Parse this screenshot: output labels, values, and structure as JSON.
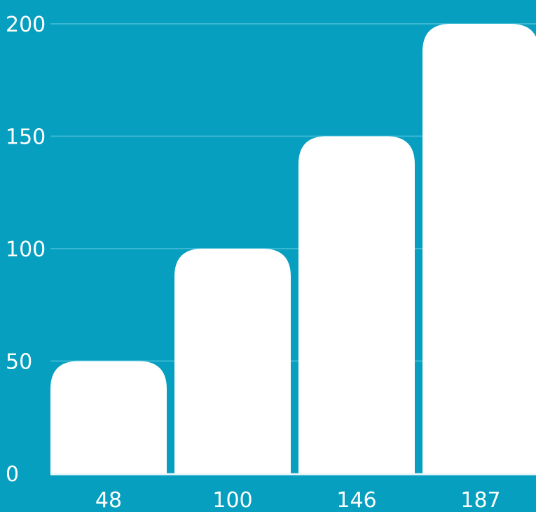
{
  "colors": {
    "background": "#079fc0",
    "bar": "#ffffff",
    "gridline": "#3ab8d3",
    "text": "#ffffff"
  },
  "chart_data": {
    "type": "bar",
    "title": "",
    "xlabel": "",
    "ylabel": "",
    "categories": [
      "48",
      "100",
      "146",
      "187"
    ],
    "values": [
      50,
      100,
      150,
      200
    ],
    "ylim": [
      0,
      200
    ],
    "yticks": [
      0,
      50,
      100,
      150,
      200
    ],
    "yticklabels": [
      "0",
      "50",
      "100",
      "150",
      "200"
    ],
    "grid": true,
    "legend": "none"
  }
}
